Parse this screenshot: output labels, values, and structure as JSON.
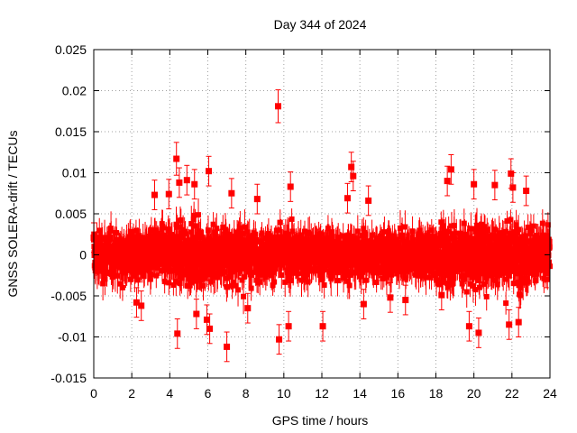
{
  "chart_data": {
    "type": "scatter",
    "title": "Day 344 of 2024",
    "xlabel": "GPS time / hours",
    "ylabel": "GNSS SOLERA-drift / TECUs",
    "xlim": [
      0,
      24
    ],
    "ylim": [
      -0.015,
      0.025
    ],
    "x_ticks": [
      0,
      2,
      4,
      6,
      8,
      10,
      12,
      14,
      16,
      18,
      20,
      22,
      24
    ],
    "x_tick_labels": [
      "0",
      "2",
      "4",
      "6",
      "8",
      "10",
      "12",
      "14",
      "16",
      "18",
      "20",
      "22",
      "24"
    ],
    "y_ticks": [
      -0.015,
      -0.01,
      -0.005,
      0,
      0.005,
      0.01,
      0.015,
      0.02,
      0.025
    ],
    "y_tick_labels": [
      "-0.015",
      "-0.01",
      "-0.005",
      "0",
      "0.005",
      "0.01",
      "0.015",
      "0.02",
      "0.025"
    ],
    "grid": true,
    "marker": "square",
    "error_bars": true,
    "series_color": "#ff0000",
    "points": [
      {
        "x": 9.7,
        "y": 0.0181,
        "err": 0.002
      },
      {
        "x": 4.35,
        "y": 0.0117,
        "err": 0.002
      },
      {
        "x": 6.05,
        "y": 0.0102,
        "err": 0.0018
      },
      {
        "x": 13.55,
        "y": 0.0107,
        "err": 0.0018
      },
      {
        "x": 13.65,
        "y": 0.0096,
        "err": 0.0018
      },
      {
        "x": 18.8,
        "y": 0.0104,
        "err": 0.0018
      },
      {
        "x": 21.95,
        "y": 0.0099,
        "err": 0.0018
      },
      {
        "x": 22.05,
        "y": 0.0082,
        "err": 0.0018
      },
      {
        "x": 18.6,
        "y": 0.009,
        "err": 0.0018
      },
      {
        "x": 4.9,
        "y": 0.0091,
        "err": 0.0018
      },
      {
        "x": 4.5,
        "y": 0.0088,
        "err": 0.0018
      },
      {
        "x": 5.3,
        "y": 0.0086,
        "err": 0.0018
      },
      {
        "x": 10.35,
        "y": 0.0083,
        "err": 0.0018
      },
      {
        "x": 20.0,
        "y": 0.0086,
        "err": 0.0018
      },
      {
        "x": 21.1,
        "y": 0.0085,
        "err": 0.0018
      },
      {
        "x": 22.75,
        "y": 0.0078,
        "err": 0.0018
      },
      {
        "x": 3.2,
        "y": 0.0073,
        "err": 0.0018
      },
      {
        "x": 3.95,
        "y": 0.0074,
        "err": 0.0018
      },
      {
        "x": 7.25,
        "y": 0.0075,
        "err": 0.0018
      },
      {
        "x": 8.6,
        "y": 0.0068,
        "err": 0.0018
      },
      {
        "x": 13.35,
        "y": 0.0069,
        "err": 0.0018
      },
      {
        "x": 14.45,
        "y": 0.0066,
        "err": 0.0018
      },
      {
        "x": 7.0,
        "y": -0.0112,
        "err": 0.0018
      },
      {
        "x": 9.75,
        "y": -0.0103,
        "err": 0.0018
      },
      {
        "x": 4.4,
        "y": -0.0096,
        "err": 0.0018
      },
      {
        "x": 10.25,
        "y": -0.0087,
        "err": 0.0018
      },
      {
        "x": 12.05,
        "y": -0.0087,
        "err": 0.0018
      },
      {
        "x": 19.75,
        "y": -0.0087,
        "err": 0.0018
      },
      {
        "x": 20.25,
        "y": -0.0095,
        "err": 0.0018
      },
      {
        "x": 21.85,
        "y": -0.0085,
        "err": 0.0018
      },
      {
        "x": 22.35,
        "y": -0.0082,
        "err": 0.0018
      },
      {
        "x": 6.1,
        "y": -0.009,
        "err": 0.0018
      },
      {
        "x": 5.95,
        "y": -0.0079,
        "err": 0.0018
      },
      {
        "x": 2.25,
        "y": -0.0058,
        "err": 0.0018
      },
      {
        "x": 2.5,
        "y": -0.0062,
        "err": 0.0018
      },
      {
        "x": 5.4,
        "y": -0.0072,
        "err": 0.0018
      },
      {
        "x": 8.1,
        "y": -0.0065,
        "err": 0.0018
      },
      {
        "x": 14.2,
        "y": -0.006,
        "err": 0.0018
      },
      {
        "x": 15.6,
        "y": -0.0052,
        "err": 0.0018
      },
      {
        "x": 16.4,
        "y": -0.0055,
        "err": 0.0018
      },
      {
        "x": 18.3,
        "y": -0.0049,
        "err": 0.0018
      },
      {
        "x": 23.8,
        "y": -0.0022,
        "err": 0.0018
      },
      {
        "x": 0.0,
        "y": 0.0021,
        "err": 0.0018
      },
      {
        "x": 0.05,
        "y": 0.0,
        "err": 0.0018
      }
    ]
  }
}
